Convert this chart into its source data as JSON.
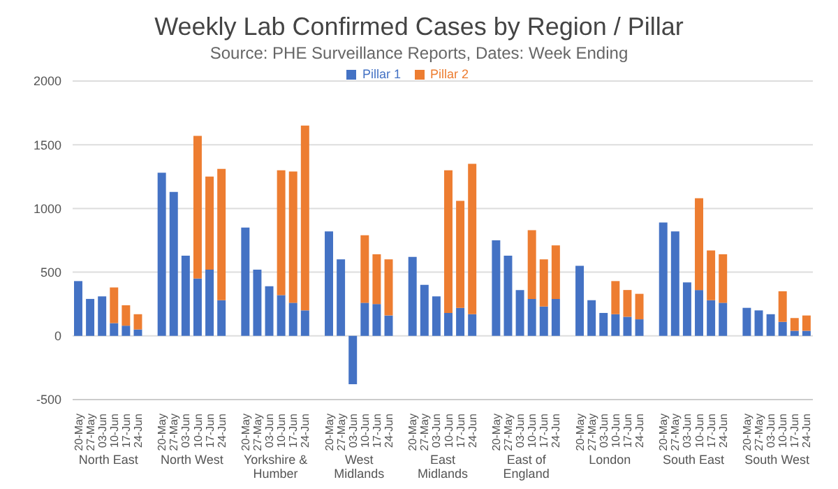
{
  "chart_data": {
    "type": "bar",
    "title": "Weekly Lab Confirmed Cases by Region / Pillar",
    "subtitle": "Source: PHE Surveillance Reports, Dates: Week Ending",
    "categories": [
      "20-May",
      "27-May",
      "03-Jun",
      "10-Jun",
      "17-Jun",
      "24-Jun",
      null,
      "20-May",
      "27-May",
      "03-Jun",
      "10-Jun",
      "17-Jun",
      "24-Jun",
      null,
      "20-May",
      "27-May",
      "03-Jun",
      "10-Jun",
      "17-Jun",
      "24-Jun",
      null,
      "20-May",
      "27-May",
      "03-Jun",
      "10-Jun",
      "17-Jun",
      "24-Jun",
      null,
      "20-May",
      "27-May",
      "03-Jun",
      "10-Jun",
      "17-Jun",
      "24-Jun",
      null,
      "20-May",
      "27-May",
      "03-Jun",
      "10-Jun",
      "17-Jun",
      "24-Jun",
      null,
      "20-May",
      "27-May",
      "03-Jun",
      "10-Jun",
      "17-Jun",
      "24-Jun",
      null,
      "20-May",
      "27-May",
      "03-Jun",
      "10-Jun",
      "17-Jun",
      "24-Jun",
      null,
      "20-May",
      "27-May",
      "03-Jun",
      "10-Jun",
      "17-Jun",
      "24-Jun"
    ],
    "series": [
      {
        "name": "Pillar 1",
        "color": "#4472c4",
        "values": [
          430,
          290,
          310,
          100,
          80,
          50,
          null,
          1280,
          1130,
          630,
          450,
          520,
          280,
          null,
          850,
          520,
          390,
          320,
          260,
          200,
          null,
          820,
          600,
          -380,
          260,
          250,
          160,
          null,
          620,
          400,
          310,
          180,
          220,
          170,
          null,
          750,
          630,
          360,
          290,
          230,
          290,
          null,
          550,
          280,
          180,
          170,
          150,
          130,
          null,
          890,
          820,
          420,
          360,
          280,
          260,
          null,
          220,
          200,
          170,
          110,
          40,
          40
        ]
      },
      {
        "name": "Pillar 2",
        "color": "#ed7d31",
        "values": [
          null,
          null,
          null,
          280,
          160,
          120,
          null,
          null,
          null,
          null,
          1120,
          730,
          1030,
          null,
          null,
          null,
          null,
          980,
          1030,
          1450,
          null,
          null,
          null,
          null,
          530,
          390,
          440,
          null,
          null,
          null,
          null,
          1120,
          840,
          1180,
          null,
          null,
          null,
          null,
          540,
          370,
          420,
          null,
          null,
          null,
          null,
          260,
          210,
          200,
          null,
          null,
          null,
          null,
          720,
          390,
          380,
          null,
          null,
          null,
          null,
          240,
          100,
          120
        ]
      }
    ],
    "annotations": [
      "North East",
      "North West",
      "Yorkshire & Humber",
      "West Midlands",
      "East Midlands",
      "East of England",
      "London",
      "South East",
      "South West"
    ],
    "stacked": true,
    "ylim": [
      -500,
      2000
    ],
    "yticks": [
      -500,
      0,
      500,
      1000,
      1500,
      2000
    ],
    "grid": "y",
    "legend": "top"
  }
}
